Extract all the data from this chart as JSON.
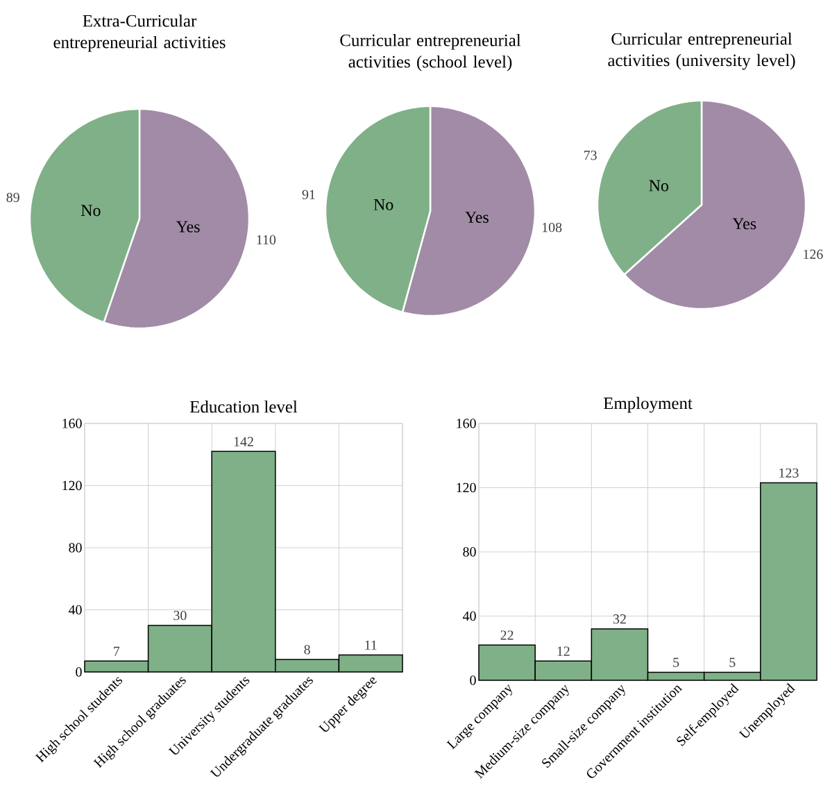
{
  "chart_data": [
    {
      "type": "pie",
      "title": "Extra-Curricular entrepreneurial activities",
      "categories": [
        "Yes",
        "No"
      ],
      "values": [
        110,
        89
      ],
      "colors": [
        "#a18ba6",
        "#7fb087"
      ],
      "data_labels": true
    },
    {
      "type": "pie",
      "title": "Curricular entrepreneurial activities (school level)",
      "categories": [
        "Yes",
        "No"
      ],
      "values": [
        108,
        91
      ],
      "colors": [
        "#a18ba6",
        "#7fb087"
      ],
      "data_labels": true
    },
    {
      "type": "pie",
      "title": "Curricular entrepreneurial activities (university level)",
      "categories": [
        "Yes",
        "No"
      ],
      "values": [
        126,
        73
      ],
      "colors": [
        "#a18ba6",
        "#7fb087"
      ],
      "data_labels": true
    },
    {
      "type": "bar",
      "title": "Education level",
      "categories": [
        "High school students",
        "High school graduates",
        "University students",
        "Undergraduate graduates",
        "Upper degree"
      ],
      "values": [
        7,
        30,
        142,
        8,
        11
      ],
      "color": "#7fb087",
      "ylim": [
        0,
        160
      ],
      "yticks": [
        0,
        40,
        80,
        120,
        160
      ],
      "grid": true,
      "data_labels": true
    },
    {
      "type": "bar",
      "title": "Employment",
      "categories": [
        "Large company",
        "Medium-size company",
        "Small-size company",
        "Government institution",
        "Self-employed",
        "Unemployed"
      ],
      "values": [
        22,
        12,
        32,
        5,
        5,
        123
      ],
      "color": "#7fb087",
      "ylim": [
        0,
        160
      ],
      "yticks": [
        0,
        40,
        80,
        120,
        160
      ],
      "grid": true,
      "data_labels": true
    }
  ]
}
